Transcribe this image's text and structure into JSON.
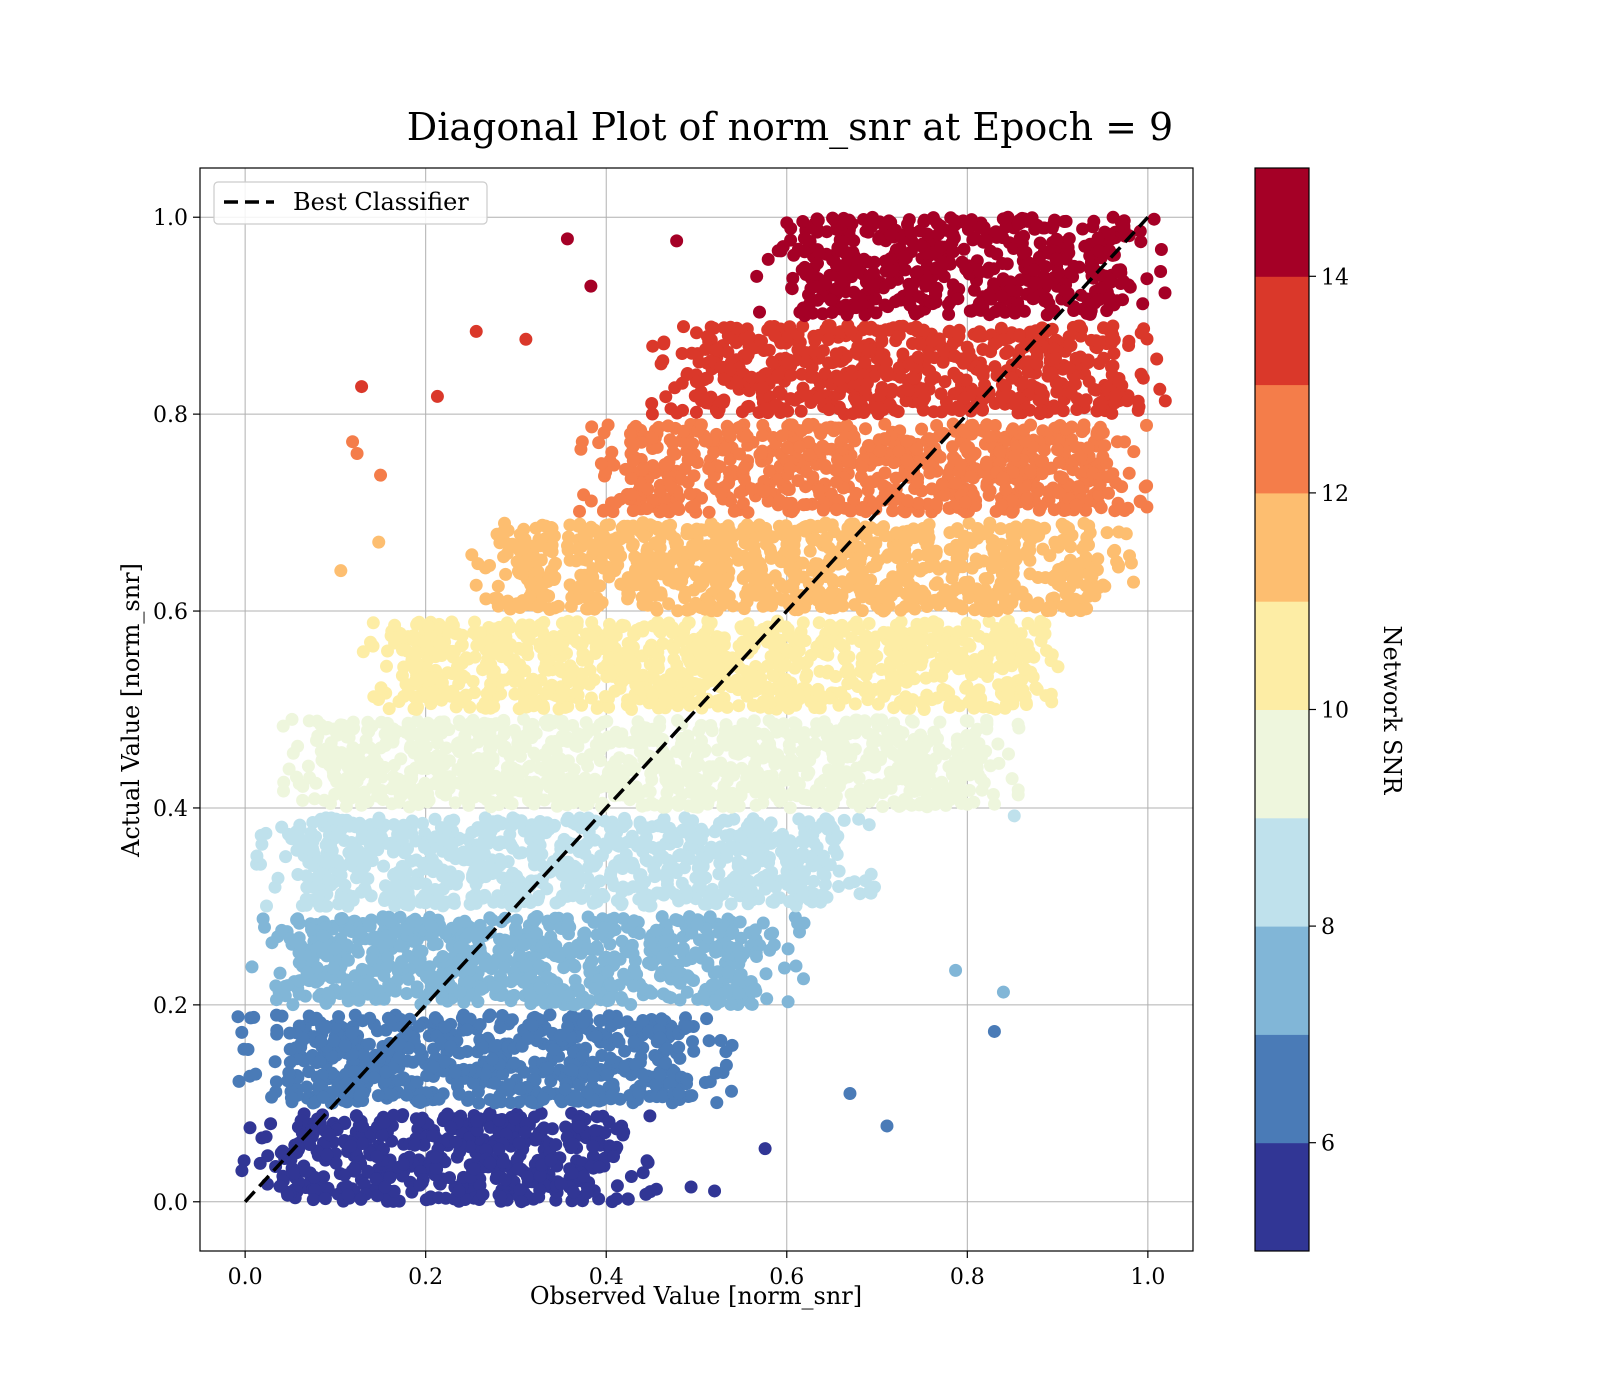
{
  "chart_data": {
    "type": "scatter",
    "title": "Diagonal Plot of norm_snr at Epoch = 9",
    "xlabel": "Observed Value [norm_snr]",
    "ylabel": "Actual Value [norm_snr]",
    "xlim": [
      -0.05,
      1.05
    ],
    "ylim": [
      -0.05,
      1.05
    ],
    "xticks": [
      0.0,
      0.2,
      0.4,
      0.6,
      0.8,
      1.0
    ],
    "yticks": [
      0.0,
      0.2,
      0.4,
      0.6,
      0.8,
      1.0
    ],
    "xtick_labels": [
      "0.0",
      "0.2",
      "0.4",
      "0.6",
      "0.8",
      "1.0"
    ],
    "ytick_labels": [
      "0.0",
      "0.2",
      "0.4",
      "0.6",
      "0.8",
      "1.0"
    ],
    "grid": true,
    "legend": {
      "placement": "upper-left",
      "entries": [
        {
          "label": "Best Classifier",
          "style": "black-dashed-line"
        }
      ]
    },
    "reference_line": {
      "name": "Best Classifier",
      "x": [
        0.0,
        1.0
      ],
      "y": [
        0.0,
        1.0
      ],
      "color": "#000000",
      "dash": true
    },
    "point_bands": [
      {
        "snr_range": [
          5,
          6
        ],
        "y_range": [
          0.0,
          0.09
        ],
        "x_core": [
          0.05,
          0.4
        ],
        "color": "#313695"
      },
      {
        "snr_range": [
          6,
          7
        ],
        "y_range": [
          0.1,
          0.19
        ],
        "x_core": [
          0.05,
          0.48
        ],
        "color": "#4a7bb7"
      },
      {
        "snr_range": [
          7,
          8
        ],
        "y_range": [
          0.2,
          0.29
        ],
        "x_core": [
          0.06,
          0.56
        ],
        "color": "#81b6d7"
      },
      {
        "snr_range": [
          8,
          9
        ],
        "y_range": [
          0.3,
          0.39
        ],
        "x_core": [
          0.07,
          0.64
        ],
        "color": "#bfe1ec"
      },
      {
        "snr_range": [
          9,
          10
        ],
        "y_range": [
          0.4,
          0.49
        ],
        "x_core": [
          0.1,
          0.8
        ],
        "color": "#eef6dd"
      },
      {
        "snr_range": [
          10,
          11
        ],
        "y_range": [
          0.5,
          0.59
        ],
        "x_core": [
          0.19,
          0.86
        ],
        "color": "#fdeda5"
      },
      {
        "snr_range": [
          11,
          12
        ],
        "y_range": [
          0.6,
          0.69
        ],
        "x_core": [
          0.31,
          0.93
        ],
        "color": "#fdbe70"
      },
      {
        "snr_range": [
          12,
          13
        ],
        "y_range": [
          0.7,
          0.79
        ],
        "x_core": [
          0.43,
          0.95
        ],
        "color": "#f47d4a"
      },
      {
        "snr_range": [
          13,
          14
        ],
        "y_range": [
          0.8,
          0.89
        ],
        "x_core": [
          0.5,
          0.96
        ],
        "color": "#da382a"
      },
      {
        "snr_range": [
          14,
          15
        ],
        "y_range": [
          0.9,
          1.0
        ],
        "x_core": [
          0.62,
          0.97
        ],
        "color": "#a50026"
      }
    ],
    "outliers": [
      {
        "x": 0.357,
        "y": 0.978,
        "color": "#a50026"
      },
      {
        "x": 0.383,
        "y": 0.93,
        "color": "#a50026"
      },
      {
        "x": 0.478,
        "y": 0.976,
        "color": "#a50026"
      },
      {
        "x": 0.129,
        "y": 0.828,
        "color": "#da382a"
      },
      {
        "x": 0.256,
        "y": 0.884,
        "color": "#da382a"
      },
      {
        "x": 0.311,
        "y": 0.876,
        "color": "#da382a"
      },
      {
        "x": 0.213,
        "y": 0.818,
        "color": "#da382a"
      },
      {
        "x": 0.15,
        "y": 0.738,
        "color": "#f47d4a"
      },
      {
        "x": 0.119,
        "y": 0.772,
        "color": "#f47d4a"
      },
      {
        "x": 0.124,
        "y": 0.76,
        "color": "#f47d4a"
      },
      {
        "x": 0.106,
        "y": 0.641,
        "color": "#fdbe70"
      },
      {
        "x": 0.148,
        "y": 0.67,
        "color": "#fdbe70"
      },
      {
        "x": 0.84,
        "y": 0.213,
        "color": "#81b6d7"
      },
      {
        "x": 0.787,
        "y": 0.235,
        "color": "#81b6d7"
      },
      {
        "x": 0.83,
        "y": 0.173,
        "color": "#4a7bb7"
      },
      {
        "x": 0.711,
        "y": 0.077,
        "color": "#4a7bb7"
      },
      {
        "x": 0.67,
        "y": 0.11,
        "color": "#4a7bb7"
      },
      {
        "x": 0.852,
        "y": 0.392,
        "color": "#bfe1ec"
      },
      {
        "x": 0.576,
        "y": 0.054,
        "color": "#313695"
      },
      {
        "x": 0.424,
        "y": 0.003,
        "color": "#313695"
      },
      {
        "x": 0.52,
        "y": 0.011,
        "color": "#313695"
      },
      {
        "x": 0.494,
        "y": 0.015,
        "color": "#313695"
      }
    ],
    "colorbar": {
      "label": "Network SNR",
      "range": [
        5,
        15
      ],
      "ticks": [
        6,
        8,
        10,
        12,
        14
      ],
      "tick_labels": [
        "6",
        "8",
        "10",
        "12",
        "14"
      ],
      "colors": [
        "#313695",
        "#4a7bb7",
        "#81b6d7",
        "#bfe1ec",
        "#eef6dd",
        "#fdeda5",
        "#fdbe70",
        "#f47d4a",
        "#da382a",
        "#a50026"
      ]
    }
  }
}
